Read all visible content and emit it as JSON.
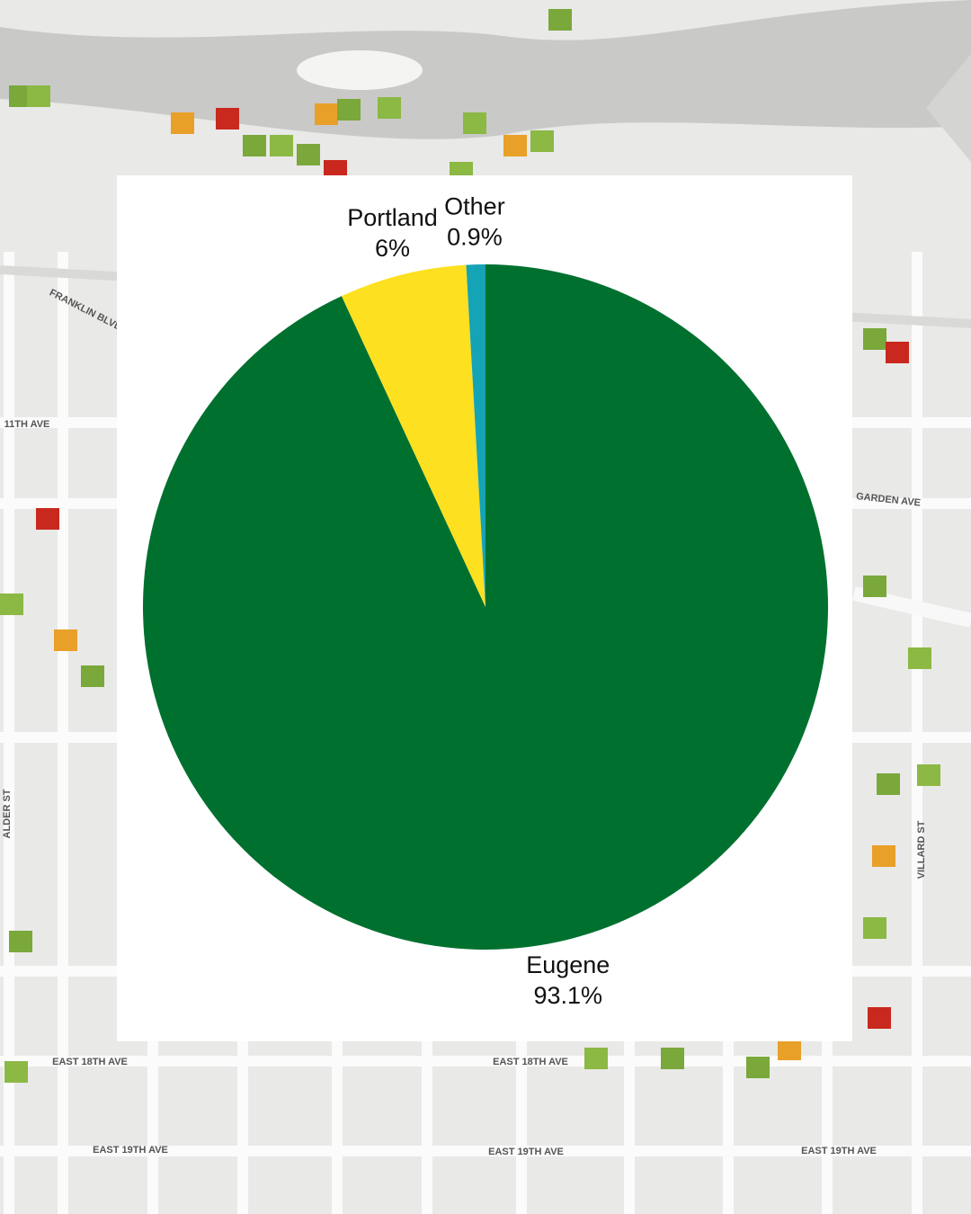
{
  "chart_data": {
    "type": "pie",
    "categories": [
      "Eugene",
      "Portland",
      "Other"
    ],
    "values": [
      93.1,
      6,
      0.9
    ],
    "value_labels": [
      "93.1%",
      "6%",
      "0.9%"
    ],
    "colors": [
      "#00702f",
      "#fde01f",
      "#15a3b6"
    ],
    "start": "top",
    "direction": "clockwise"
  },
  "map_labels": [
    "11TH AVE",
    "GARDEN AVE",
    "FRANKLIN BLVD",
    "EAST 18TH AVE",
    "EAST 18TH AVE",
    "EAST 19TH AVE",
    "EAST 19TH AVE",
    "EAST 19TH AVE",
    "VILLARD ST",
    "ALDER ST"
  ]
}
